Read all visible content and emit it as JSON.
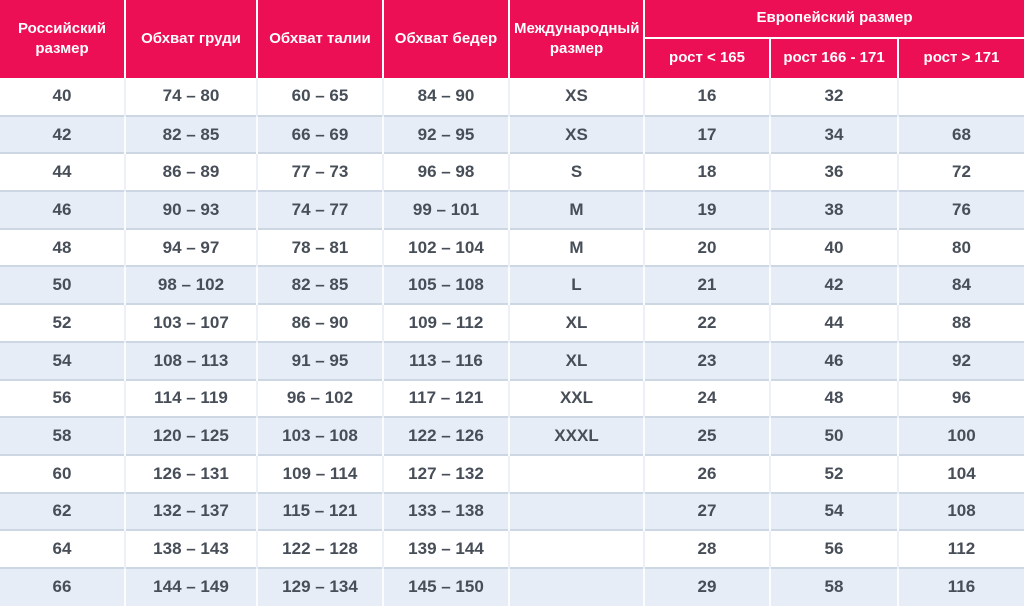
{
  "colors": {
    "header_bg": "#ED0F55",
    "header_text": "#FFFFFF",
    "row_alt_bg": "#E7EDF6",
    "row_bg": "#FFFFFF",
    "cell_text": "#474E58",
    "row_divider": "#CDD7E3"
  },
  "table": {
    "header": {
      "col_russian": "Российский размер",
      "col_chest": "Обхват груди",
      "col_waist": "Обхват талии",
      "col_hips": "Обхват бедер",
      "col_international": "Международный размер",
      "col_european_group": "Европейский размер",
      "col_height_lt": "рост < 165",
      "col_height_mid": "рост 166 - 171",
      "col_height_gt": "рост > 171"
    },
    "rows": [
      [
        "40",
        "74 – 80",
        "60 – 65",
        "84 – 90",
        "XS",
        "16",
        "32",
        ""
      ],
      [
        "42",
        "82 – 85",
        "66 – 69",
        "92 – 95",
        "XS",
        "17",
        "34",
        "68"
      ],
      [
        "44",
        "86 – 89",
        "77 – 73",
        "96 – 98",
        "S",
        "18",
        "36",
        "72"
      ],
      [
        "46",
        "90 – 93",
        "74 – 77",
        "99 – 101",
        "M",
        "19",
        "38",
        "76"
      ],
      [
        "48",
        "94 – 97",
        "78 – 81",
        "102 – 104",
        "M",
        "20",
        "40",
        "80"
      ],
      [
        "50",
        "98 – 102",
        "82 – 85",
        "105 – 108",
        "L",
        "21",
        "42",
        "84"
      ],
      [
        "52",
        "103 – 107",
        "86 – 90",
        "109 – 112",
        "XL",
        "22",
        "44",
        "88"
      ],
      [
        "54",
        "108 – 113",
        "91 – 95",
        "113 – 116",
        "XL",
        "23",
        "46",
        "92"
      ],
      [
        "56",
        "114 – 119",
        "96 – 102",
        "117 – 121",
        "XXL",
        "24",
        "48",
        "96"
      ],
      [
        "58",
        "120 – 125",
        "103 – 108",
        "122 – 126",
        "XXXL",
        "25",
        "50",
        "100"
      ],
      [
        "60",
        "126 – 131",
        "109 – 114",
        "127 – 132",
        "",
        "26",
        "52",
        "104"
      ],
      [
        "62",
        "132 – 137",
        "115 – 121",
        "133 – 138",
        "",
        "27",
        "54",
        "108"
      ],
      [
        "64",
        "138 – 143",
        "122 – 128",
        "139 – 144",
        "",
        "28",
        "56",
        "112"
      ],
      [
        "66",
        "144 – 149",
        "129 – 134",
        "145 – 150",
        "",
        "29",
        "58",
        "116"
      ]
    ]
  }
}
